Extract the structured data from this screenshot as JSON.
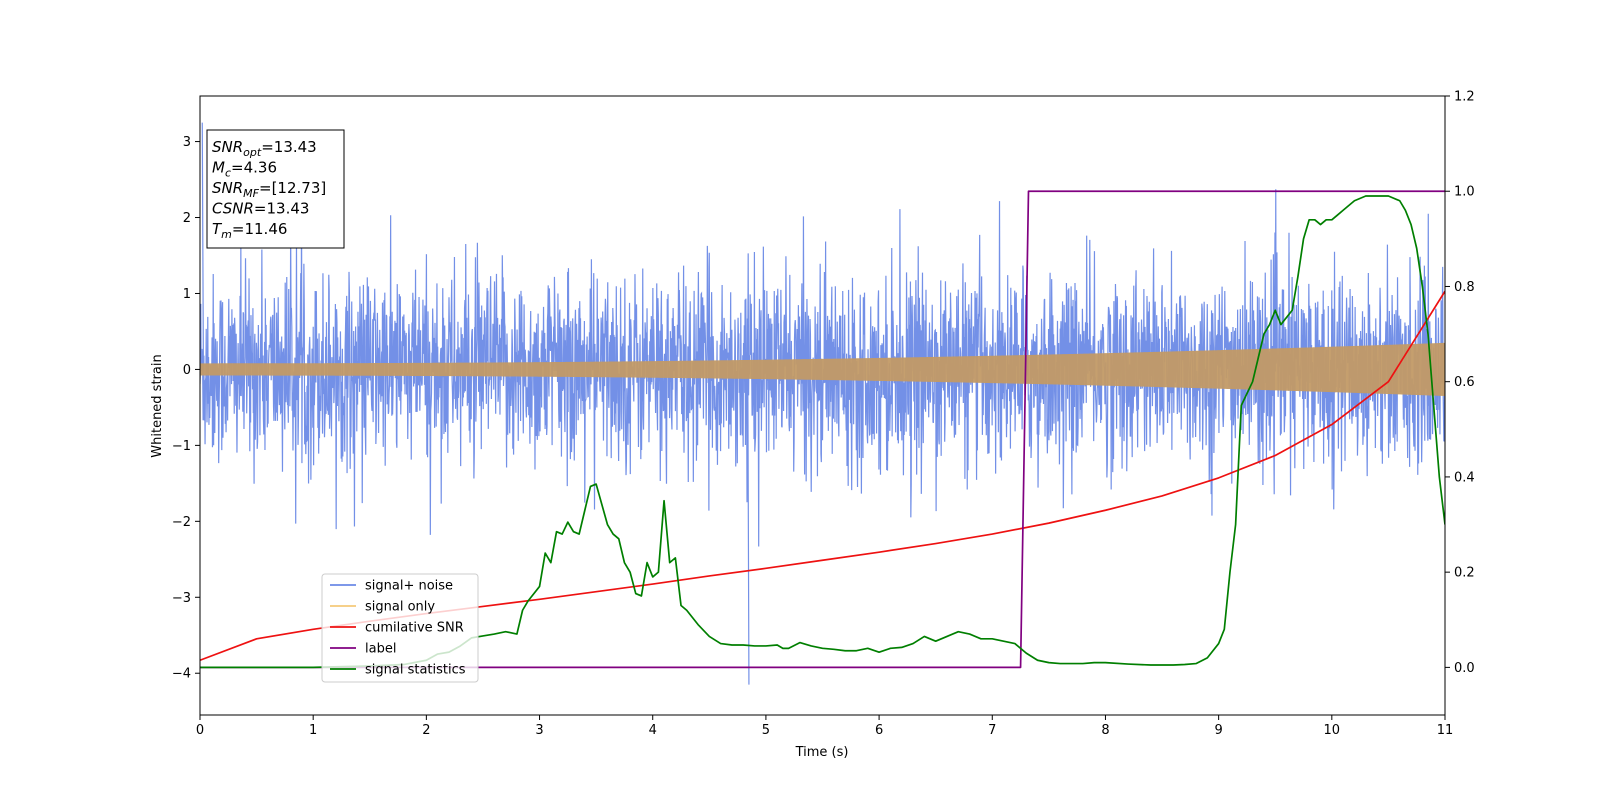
{
  "chart_data": {
    "type": "line",
    "xlabel": "Time (s)",
    "ylabel": "Whitened strain",
    "xlim": [
      0,
      11
    ],
    "ylim_left": [
      -4.55,
      3.6
    ],
    "ylim_right": [
      -0.1,
      1.2
    ],
    "xticks": [
      0,
      1,
      2,
      3,
      4,
      5,
      6,
      7,
      8,
      9,
      10,
      11
    ],
    "yticks_left": [
      -4,
      -3,
      -2,
      -1,
      0,
      1,
      2,
      3
    ],
    "yticks_left_labels": [
      "−4",
      "−3",
      "−2",
      "−1",
      "0",
      "1",
      "2",
      "3"
    ],
    "yticks_right": [
      0.0,
      0.2,
      0.4,
      0.6,
      0.8,
      1.0,
      1.2
    ],
    "yticks_right_labels": [
      "0.0",
      "0.2",
      "0.4",
      "0.6",
      "0.8",
      "1.0",
      "1.2"
    ],
    "legend_position": "lower-left",
    "annotation": {
      "lines": [
        {
          "base": "SNR",
          "sub": "opt",
          "value": "=13.43"
        },
        {
          "base": "M",
          "sub": "c",
          "value": "=4.36"
        },
        {
          "base": "SNR",
          "sub": "MF",
          "value": "=[12.73]"
        },
        {
          "base": "CSNR",
          "sub": "",
          "value": "=13.43"
        },
        {
          "base": "T",
          "sub": "m",
          "value": "=11.46"
        }
      ]
    },
    "series": [
      {
        "name": "signal+ noise",
        "color": "#6b8ae6",
        "axis": "left",
        "kind": "noise",
        "typical_range": [
          -1.9,
          1.9
        ],
        "extremes": [
          3.25,
          -4.15
        ]
      },
      {
        "name": "signal only",
        "color": "#f5c97a",
        "axis": "left",
        "kind": "chirp",
        "amplitude_start": 0.08,
        "amplitude_end": 0.35
      },
      {
        "name": "cumilative SNR",
        "color": "#ee1111",
        "axis": "right",
        "x": [
          0,
          0.5,
          1,
          1.5,
          2,
          2.5,
          3,
          3.5,
          4,
          4.5,
          5,
          5.5,
          6,
          6.5,
          7,
          7.5,
          8,
          8.5,
          9,
          9.5,
          10,
          10.5,
          11
        ],
        "y": [
          0.015,
          0.06,
          0.08,
          0.097,
          0.113,
          0.128,
          0.143,
          0.159,
          0.175,
          0.192,
          0.208,
          0.225,
          0.242,
          0.26,
          0.28,
          0.303,
          0.33,
          0.36,
          0.398,
          0.445,
          0.51,
          0.6,
          0.79
        ]
      },
      {
        "name": "label",
        "color": "#800080",
        "axis": "right",
        "x": [
          0,
          7.25,
          7.32,
          11
        ],
        "y": [
          0,
          0,
          1,
          1
        ]
      },
      {
        "name": "signal statistics",
        "color": "#007f00",
        "axis": "right",
        "x": [
          0,
          1.0,
          1.5,
          1.8,
          2.0,
          2.1,
          2.2,
          2.3,
          2.4,
          2.5,
          2.6,
          2.7,
          2.8,
          2.85,
          2.9,
          3.0,
          3.05,
          3.1,
          3.15,
          3.2,
          3.25,
          3.3,
          3.35,
          3.4,
          3.45,
          3.5,
          3.6,
          3.65,
          3.7,
          3.75,
          3.8,
          3.85,
          3.9,
          3.95,
          4.0,
          4.05,
          4.1,
          4.15,
          4.2,
          4.25,
          4.3,
          4.4,
          4.5,
          4.6,
          4.7,
          4.8,
          4.9,
          5.0,
          5.1,
          5.15,
          5.2,
          5.3,
          5.4,
          5.5,
          5.6,
          5.7,
          5.8,
          5.9,
          6.0,
          6.1,
          6.2,
          6.3,
          6.4,
          6.5,
          6.6,
          6.7,
          6.8,
          6.9,
          7.0,
          7.1,
          7.2,
          7.3,
          7.4,
          7.5,
          7.6,
          7.8,
          7.9,
          8.0,
          8.2,
          8.4,
          8.5,
          8.6,
          8.7,
          8.8,
          8.9,
          9.0,
          9.05,
          9.1,
          9.15,
          9.2,
          9.3,
          9.35,
          9.4,
          9.45,
          9.5,
          9.55,
          9.65,
          9.7,
          9.75,
          9.8,
          9.85,
          9.9,
          9.95,
          10.0,
          10.05,
          10.1,
          10.2,
          10.3,
          10.4,
          10.5,
          10.6,
          10.65,
          10.7,
          10.75,
          10.8,
          10.85,
          10.9,
          10.95,
          11.0
        ],
        "y": [
          0.0,
          0.0,
          0.003,
          0.006,
          0.015,
          0.028,
          0.032,
          0.045,
          0.062,
          0.066,
          0.07,
          0.075,
          0.07,
          0.12,
          0.14,
          0.17,
          0.24,
          0.22,
          0.285,
          0.28,
          0.305,
          0.285,
          0.28,
          0.33,
          0.38,
          0.385,
          0.3,
          0.28,
          0.27,
          0.22,
          0.2,
          0.155,
          0.15,
          0.22,
          0.19,
          0.2,
          0.35,
          0.22,
          0.23,
          0.13,
          0.12,
          0.09,
          0.065,
          0.05,
          0.047,
          0.047,
          0.045,
          0.045,
          0.047,
          0.04,
          0.04,
          0.052,
          0.045,
          0.04,
          0.038,
          0.035,
          0.035,
          0.04,
          0.032,
          0.04,
          0.042,
          0.05,
          0.065,
          0.055,
          0.065,
          0.075,
          0.07,
          0.06,
          0.06,
          0.055,
          0.05,
          0.03,
          0.015,
          0.01,
          0.008,
          0.008,
          0.01,
          0.01,
          0.007,
          0.005,
          0.005,
          0.005,
          0.006,
          0.008,
          0.02,
          0.05,
          0.08,
          0.2,
          0.3,
          0.55,
          0.6,
          0.65,
          0.7,
          0.72,
          0.75,
          0.72,
          0.75,
          0.82,
          0.9,
          0.94,
          0.94,
          0.93,
          0.94,
          0.94,
          0.95,
          0.96,
          0.98,
          0.99,
          0.99,
          0.99,
          0.98,
          0.96,
          0.93,
          0.88,
          0.8,
          0.7,
          0.55,
          0.4,
          0.3
        ]
      }
    ]
  }
}
